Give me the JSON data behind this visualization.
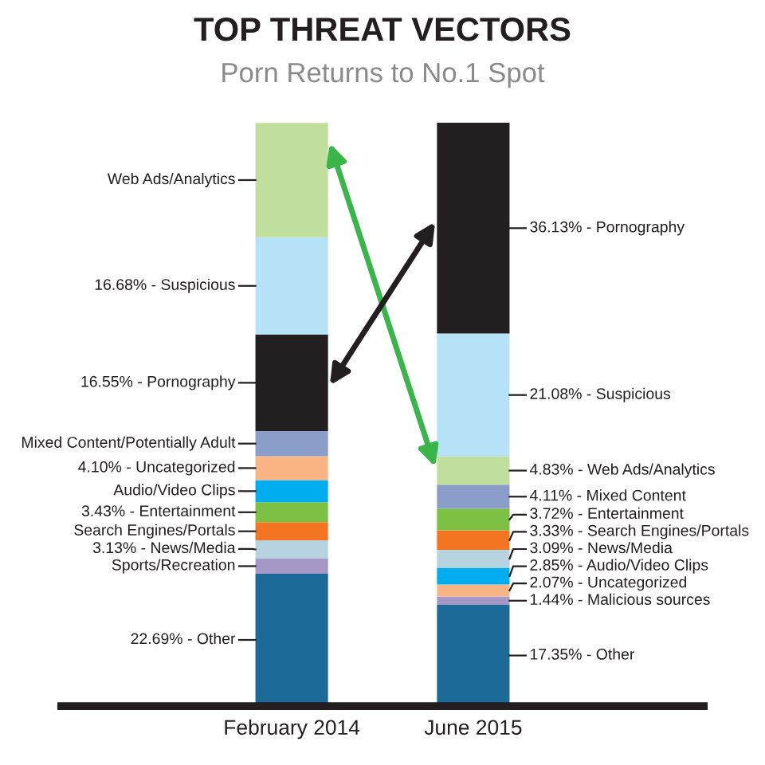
{
  "chart_data": {
    "type": "bar",
    "title": "TOP THREAT VECTORS",
    "subtitle": "Porn Returns to No.1 Spot",
    "categories": [
      "February 2014",
      "June 2015"
    ],
    "stacked": true,
    "series": [
      {
        "values": [
          22.69,
          17.35
        ],
        "colors": [
          "#1b6a97",
          "#1b6a97"
        ],
        "value_labels": [
          "22.69% - Other",
          "17.35% - Other"
        ]
      },
      {
        "values": [
          2.6,
          1.44
        ],
        "colors": [
          "#a597c6",
          "#a597c6"
        ],
        "value_labels": [
          "Sports/Recreation",
          "1.44% - Malicious sources"
        ]
      },
      {
        "values": [
          3.13,
          2.07
        ],
        "colors": [
          "#b7d3e0",
          "#fbb584"
        ],
        "value_labels": [
          "3.13% - News/Media",
          "2.07% - Uncategorized"
        ]
      },
      {
        "values": [
          3.1,
          2.85
        ],
        "colors": [
          "#f37421",
          "#00aeef"
        ],
        "value_labels": [
          "Search Engines/Portals",
          "2.85% - Audio/Video Clips"
        ]
      },
      {
        "values": [
          3.43,
          3.09
        ],
        "colors": [
          "#7cc143",
          "#b7d3e0"
        ],
        "value_labels": [
          "3.43% - Entertainment",
          "3.09% - News/Media"
        ]
      },
      {
        "values": [
          3.8,
          3.33
        ],
        "colors": [
          "#00aeef",
          "#f37421"
        ],
        "value_labels": [
          "Audio/Video Clips",
          "3.33% - Search Engines/Portals"
        ]
      },
      {
        "values": [
          4.1,
          3.72
        ],
        "colors": [
          "#fbb584",
          "#7cc143"
        ],
        "value_labels": [
          "4.10% - Uncategorized",
          "3.72% - Entertainment"
        ]
      },
      {
        "values": [
          4.3,
          4.11
        ],
        "colors": [
          "#8b9dc9",
          "#8b9dc9"
        ],
        "value_labels": [
          "Mixed Content/Potentially Adult",
          "4.11% - Mixed Content"
        ]
      },
      {
        "values": [
          16.55,
          4.83
        ],
        "colors": [
          "#231f20",
          "#c0df9c"
        ],
        "value_labels": [
          "16.55% - Pornography",
          "4.83% - Web Ads/Analytics"
        ]
      },
      {
        "values": [
          16.68,
          21.08
        ],
        "colors": [
          "#b6e2f7",
          "#b6e2f7"
        ],
        "value_labels": [
          "16.68% - Suspicious",
          "21.08% - Suspicious"
        ]
      },
      {
        "values": [
          19.6,
          36.13
        ],
        "colors": [
          "#c0df9c",
          "#231f20"
        ],
        "value_labels": [
          "Web Ads/Analytics",
          "36.13% - Pornography"
        ]
      }
    ]
  }
}
